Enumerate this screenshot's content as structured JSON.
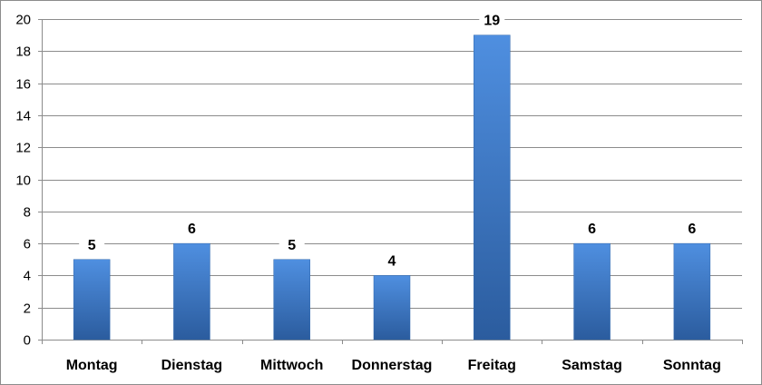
{
  "chart_data": {
    "type": "bar",
    "categories": [
      "Montag",
      "Dienstag",
      "Mittwoch",
      "Donnerstag",
      "Freitag",
      "Samstag",
      "Sonntag"
    ],
    "values": [
      5,
      6,
      5,
      4,
      19,
      6,
      6
    ],
    "title": "",
    "xlabel": "",
    "ylabel": "",
    "ylim": [
      0,
      20
    ],
    "yticks": [
      0,
      2,
      4,
      6,
      8,
      10,
      12,
      14,
      16,
      18,
      20
    ],
    "grid": true,
    "legend": "none",
    "data_labels": true,
    "colors": {
      "bar_top": "#4f8fe0",
      "bar_bottom": "#2b5c9e",
      "bar_edge": "#2f67ad",
      "grid": "#8c8c8c",
      "axis": "#8c8c8c"
    }
  }
}
